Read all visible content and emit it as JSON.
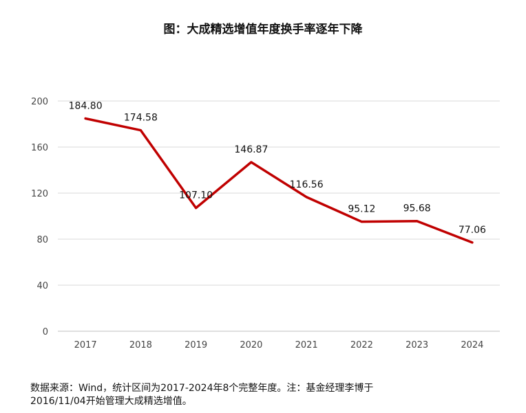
{
  "chart_data": {
    "type": "line",
    "title": "图：大成精选增值年度换手率逐年下降",
    "xlabel": "",
    "ylabel": "",
    "categories": [
      "2017",
      "2018",
      "2019",
      "2020",
      "2021",
      "2022",
      "2023",
      "2024"
    ],
    "series": [
      {
        "values": [
          184.8,
          174.58,
          107.1,
          146.87,
          116.56,
          95.12,
          95.68,
          77.06
        ],
        "labels": [
          "184.80",
          "174.58",
          "107.10",
          "146.87",
          "116.56",
          "95.12",
          "95.68",
          "77.06"
        ],
        "color": "#c00000"
      }
    ],
    "ylim": [
      0,
      200
    ],
    "yticks": [
      "0",
      "40",
      "80",
      "120",
      "160",
      "200"
    ],
    "grid": true,
    "legend": "none"
  },
  "footnote": {
    "line1": "数据来源：Wind，统计区间为2017-2024年8个完整年度。注：基金经理李博于",
    "line2": "2016/11/04开始管理大成精选增值。"
  }
}
